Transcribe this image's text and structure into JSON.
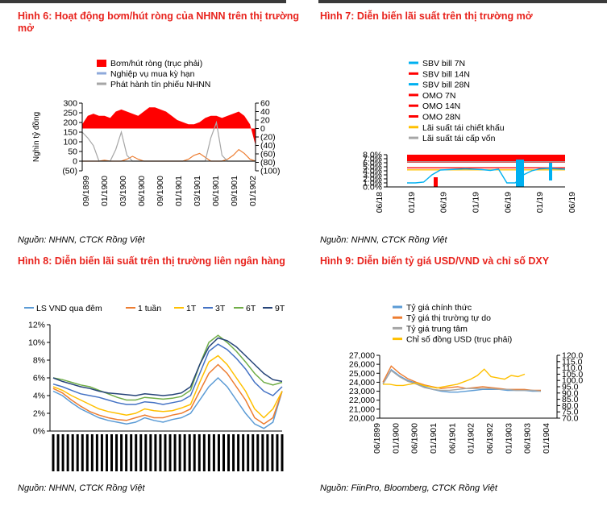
{
  "charts": {
    "fig6": {
      "title": "Hình 6: Hoạt động bơm/hút ròng của NHNN trên thị trường mở",
      "source": "Nguồn: NHNN, CTCK Rồng Việt",
      "ylabel": "Nghìn tỷ đồng",
      "legend": [
        "Bơm/hút ròng (trục phải)",
        "Nghiệp vụ mua kỳ hạn",
        "Phát hành tín phiếu NHNN"
      ],
      "y_ticks": [
        "300",
        "250",
        "200",
        "150",
        "100",
        "50",
        "0",
        "(50)"
      ],
      "y2_ticks": [
        "60",
        "40",
        "20",
        "0",
        "(20)",
        "(40)",
        "(60)",
        "(80)",
        "(100)"
      ],
      "x_ticks": [
        "09/1899",
        "01/1900",
        "03/1900",
        "06/1900",
        "09/1900",
        "01/1901",
        "03/1901",
        "06/1901",
        "09/1901",
        "01/1902"
      ]
    },
    "fig7": {
      "title": "Hình 7: Diễn biến lãi suất trên thị trường mở",
      "legend": [
        "SBV bill 7N",
        "SBV bill 14N",
        "SBV bill 28N",
        "OMO 7N",
        "OMO 14N",
        "OMO 28N",
        "Lãi suất tái chiết khấu",
        "Lãi suất tái cấp vốn"
      ],
      "y_ticks": [
        "8.0%",
        "7.0%",
        "6.0%",
        "5.0%",
        "4.0%",
        "3.0%",
        "2.0%",
        "1.0%",
        "0.0%"
      ],
      "x_ticks": [
        "06/18",
        "01/19",
        "06/19",
        "01/19",
        "06/19",
        "01/19",
        "06/19"
      ],
      "source": "Nguồn: NHNN, CTCK Rồng Việt"
    },
    "fig8": {
      "title": "Hình 8: Diễn biến lãi suất trên thị trường liên ngân hàng",
      "legend": [
        "LS VND qua đêm",
        "1 tuần",
        "1T",
        "3T",
        "6T",
        "9T"
      ],
      "y_ticks": [
        "12%",
        "10%",
        "8%",
        "6%",
        "4%",
        "2%",
        "0%"
      ],
      "source": "Nguồn: NHNN, CTCK Rồng Việt"
    },
    "fig9": {
      "title": "Hình 9: Diễn biến tỷ giá USD/VND và chỉ số DXY",
      "legend": [
        "Tỷ giá chính thức",
        "Tỷ giá thị trường tự do",
        "Tỷ giá trung tâm",
        "Chỉ số đồng USD (trục phải)"
      ],
      "y_ticks": [
        "27,000",
        "26,000",
        "25,000",
        "24,000",
        "23,000",
        "22,000",
        "21,000",
        "20,000"
      ],
      "y2_ticks": [
        "120.0",
        "115.0",
        "110.0",
        "105.0",
        "100.0",
        "95.0",
        "90.0",
        "85.0",
        "80.0",
        "75.0",
        "70.0"
      ],
      "x_ticks": [
        "06/1899",
        "01/1900",
        "06/1900",
        "01/1901",
        "06/1901",
        "01/1902",
        "06/1902",
        "01/1903",
        "06/1903",
        "01/1904"
      ],
      "source": "Nguồn: FiinPro, Bloomberg, CTCK Rồng Việt"
    }
  },
  "chart_data": [
    {
      "type": "bar",
      "title": "Hình 6: Hoạt động bơm/hút ròng của NHNN trên thị trường mở",
      "ylabel": "Nghìn tỷ đồng",
      "ylim": [
        -50,
        300
      ],
      "y2lim": [
        -100,
        60
      ],
      "series": [
        {
          "name": "Bơm/hút ròng (trục phải)",
          "axis": "right",
          "kind": "area",
          "values": [
            10,
            30,
            35,
            30,
            30,
            25,
            40,
            45,
            40,
            35,
            30,
            40,
            50,
            50,
            45,
            40,
            30,
            20,
            15,
            10,
            10,
            15,
            25,
            30,
            30,
            25,
            30,
            35,
            40,
            30,
            10,
            -40
          ]
        },
        {
          "name": "Nghiệp vụ mua kỳ hạn",
          "axis": "left",
          "kind": "line",
          "values": [
            0,
            0,
            0,
            0,
            5,
            0,
            0,
            0,
            10,
            25,
            10,
            0,
            0,
            0,
            0,
            0,
            0,
            0,
            0,
            10,
            30,
            40,
            20,
            0,
            0,
            0,
            10,
            30,
            60,
            40,
            10,
            0
          ]
        },
        {
          "name": "Phát hành tín phiếu NHNN",
          "axis": "left",
          "kind": "line",
          "values": [
            150,
            120,
            80,
            0,
            0,
            0,
            60,
            150,
            30,
            0,
            0,
            0,
            0,
            0,
            0,
            0,
            0,
            0,
            0,
            0,
            0,
            0,
            0,
            120,
            200,
            30,
            0,
            0,
            0,
            0,
            0,
            0
          ]
        }
      ]
    },
    {
      "type": "line",
      "title": "Hình 7: Diễn biến lãi suất trên thị trường mở",
      "ylim": [
        0,
        8
      ],
      "series": [
        {
          "name": "Lãi suất tái cấp vốn",
          "values": [
            6.25,
            6.25,
            6.25,
            6.25,
            6.25,
            6.25,
            6.25,
            6.25,
            6.25,
            6.25,
            6.25,
            6.25,
            6.25,
            6.25,
            6.25,
            6.25,
            6.25,
            6.25,
            6.25,
            6.25
          ]
        },
        {
          "name": "Lãi suất tái chiết khấu",
          "values": [
            4.25,
            4.25,
            4.25,
            4.25,
            4.25,
            4.25,
            4.25,
            4.25,
            4.25,
            4.25,
            4.25,
            4.25,
            4.25,
            4.25,
            4.25,
            4.25,
            4.25,
            4.25,
            4.25,
            4.25
          ]
        },
        {
          "name": "OMO 7N",
          "values": [
            4.75,
            4.75,
            4.75,
            4.75,
            4.75,
            4.75,
            4.75,
            4.75,
            4.75,
            4.75,
            4.75,
            4.75,
            4.75,
            4.75,
            4.75,
            4.75,
            4.75,
            4.75,
            4.75,
            4.75
          ]
        },
        {
          "name": "SBV bill 7N",
          "values": [
            1.0,
            1.0,
            1.2,
            3.0,
            4.2,
            4.3,
            4.4,
            4.5,
            4.4,
            4.3,
            4.1,
            4.4,
            1.0,
            1.0,
            3.0,
            4.0,
            4.5,
            4.6,
            4.5,
            4.4
          ]
        }
      ]
    },
    {
      "type": "line",
      "title": "Hình 8: Diễn biến lãi suất trên thị trường liên ngân hàng",
      "ylim": [
        0,
        12
      ],
      "series": [
        {
          "name": "LS VND qua đêm",
          "values": [
            4.5,
            4.0,
            3.2,
            2.5,
            2.0,
            1.5,
            1.2,
            1.0,
            0.8,
            1.0,
            1.5,
            1.2,
            1.0,
            1.3,
            1.5,
            2.0,
            3.5,
            5.0,
            6.0,
            5.0,
            3.5,
            2.0,
            0.8,
            0.3,
            1.0,
            4.5
          ]
        },
        {
          "name": "1 tuần",
          "values": [
            4.8,
            4.3,
            3.5,
            2.8,
            2.2,
            1.8,
            1.5,
            1.3,
            1.2,
            1.5,
            1.8,
            1.5,
            1.5,
            1.8,
            2.0,
            2.5,
            4.5,
            6.5,
            7.5,
            6.5,
            5.0,
            3.5,
            1.5,
            0.8,
            1.5,
            4.5
          ]
        },
        {
          "name": "1T",
          "values": [
            5.0,
            4.6,
            4.0,
            3.5,
            3.0,
            2.5,
            2.2,
            2.0,
            1.8,
            2.0,
            2.5,
            2.3,
            2.2,
            2.3,
            2.6,
            3.0,
            5.5,
            7.8,
            8.5,
            7.5,
            6.0,
            4.5,
            2.5,
            1.5,
            2.5,
            4.5
          ]
        },
        {
          "name": "3T",
          "values": [
            5.3,
            5.0,
            4.6,
            4.2,
            4.0,
            3.8,
            3.5,
            3.2,
            3.0,
            3.0,
            3.3,
            3.2,
            3.0,
            3.2,
            3.4,
            4.0,
            6.5,
            9.0,
            9.8,
            9.2,
            8.2,
            7.0,
            5.5,
            4.5,
            4.0,
            5.0
          ]
        },
        {
          "name": "6T",
          "values": [
            6.0,
            5.8,
            5.5,
            5.2,
            5.0,
            4.6,
            4.2,
            3.8,
            3.5,
            3.5,
            3.8,
            3.7,
            3.6,
            3.7,
            3.9,
            4.6,
            7.5,
            10.0,
            10.8,
            10.0,
            9.0,
            7.8,
            6.5,
            5.5,
            5.2,
            5.5
          ]
        },
        {
          "name": "9T",
          "values": [
            6.0,
            5.6,
            5.3,
            5.0,
            4.8,
            4.5,
            4.3,
            4.2,
            4.1,
            4.0,
            4.2,
            4.1,
            4.0,
            4.1,
            4.3,
            5.0,
            7.5,
            9.5,
            10.5,
            10.2,
            9.5,
            8.5,
            7.5,
            6.5,
            5.8,
            5.6
          ]
        }
      ]
    },
    {
      "type": "line",
      "title": "Hình 9: Diễn biến tỷ giá USD/VND và chỉ số DXY",
      "ylim": [
        20000,
        27000
      ],
      "y2lim": [
        70,
        120
      ],
      "series": [
        {
          "name": "Tỷ giá chính thức",
          "axis": "left",
          "values": [
            23800,
            25400,
            24700,
            24200,
            23900,
            23500,
            23200,
            23000,
            22900,
            22900,
            23000,
            23100,
            23200,
            23200,
            23200,
            23100,
            23100,
            23100,
            23000,
            23000
          ]
        },
        {
          "name": "Tỷ giá thị trường tự do",
          "axis": "left",
          "values": [
            24000,
            25800,
            25000,
            24400,
            24000,
            23700,
            23500,
            23300,
            23400,
            23500,
            23300,
            23400,
            23500,
            23400,
            23300,
            23200,
            23200,
            23200,
            23100,
            23100
          ]
        },
        {
          "name": "Tỷ giá trung tâm",
          "axis": "left",
          "values": [
            23800,
            25300,
            24600,
            24100,
            23800,
            23400,
            23200,
            23100,
            23100,
            23200,
            23300,
            23300,
            23300,
            23300,
            23200,
            23200,
            23100,
            23100,
            23100,
            23000
          ]
        },
        {
          "name": "Chỉ số đồng USD (trục phải)",
          "axis": "right",
          "values": [
            97,
            97,
            96,
            96,
            97,
            98,
            96,
            95,
            94,
            95,
            96,
            97,
            99,
            101,
            104,
            109,
            103,
            102,
            101,
            104,
            103,
            105
          ]
        }
      ]
    }
  ]
}
